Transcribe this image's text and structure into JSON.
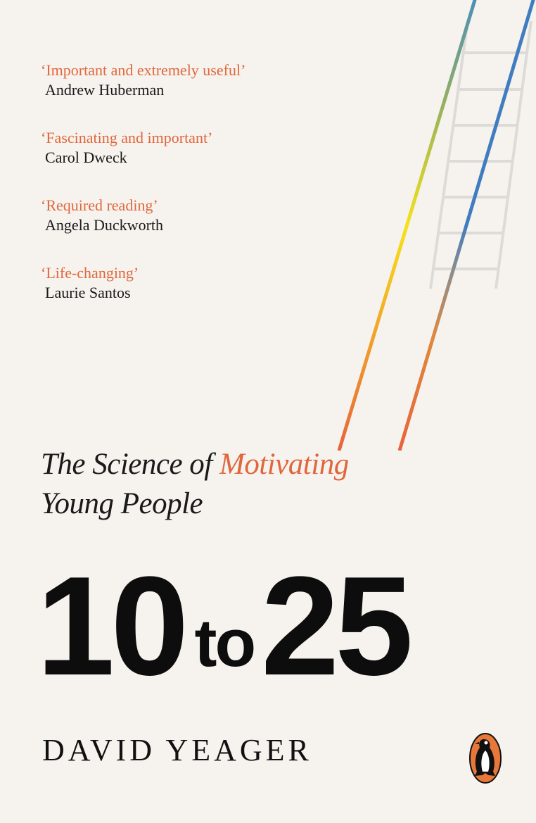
{
  "quotes": [
    {
      "text": "‘Important and extremely useful’",
      "author": "Andrew Huberman"
    },
    {
      "text": "‘Fascinating and important’",
      "author": "Carol Dweck"
    },
    {
      "text": "‘Required reading’",
      "author": "Angela Duckworth"
    },
    {
      "text": "‘Life-changing’",
      "author": "Laurie Santos"
    }
  ],
  "subtitle": {
    "line1_pre": "The Science of ",
    "line1_highlight": "Motivating",
    "line2": "Young People"
  },
  "title": {
    "first": "10",
    "middle": "to",
    "last": "25"
  },
  "author": "DAVID YEAGER",
  "publisher_logo": "penguin-icon",
  "colors": {
    "background": "#f6f3ee",
    "accent": "#e0673d",
    "logo_orange": "#e8773a",
    "ladder_orange": "#e8643a",
    "ladder_yellow": "#f5e21c",
    "ladder_blue": "#3f7cc0"
  }
}
